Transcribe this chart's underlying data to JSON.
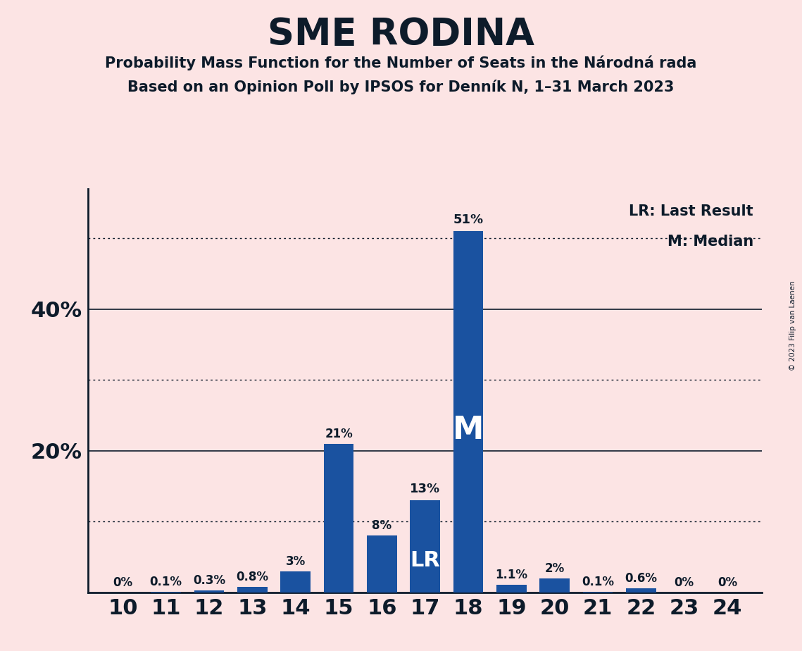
{
  "title": "SME RODINA",
  "subtitle1": "Probability Mass Function for the Number of Seats in the Národná rada",
  "subtitle2": "Based on an Opinion Poll by IPSOS for Denník N, 1–31 March 2023",
  "copyright": "© 2023 Filip van Laenen",
  "seats": [
    10,
    11,
    12,
    13,
    14,
    15,
    16,
    17,
    18,
    19,
    20,
    21,
    22,
    23,
    24
  ],
  "probabilities": [
    0.0,
    0.1,
    0.3,
    0.8,
    3.0,
    21.0,
    8.0,
    13.0,
    51.0,
    1.1,
    2.0,
    0.1,
    0.6,
    0.0,
    0.0
  ],
  "bar_color": "#1a52a0",
  "background_color": "#fce4e4",
  "text_color": "#0d1b2a",
  "lr_seat": 17,
  "median_seat": 18,
  "solid_gridlines": [
    20,
    40
  ],
  "dotted_gridlines": [
    10,
    30,
    50
  ],
  "legend_lr": "LR: Last Result",
  "legend_m": "M: Median"
}
